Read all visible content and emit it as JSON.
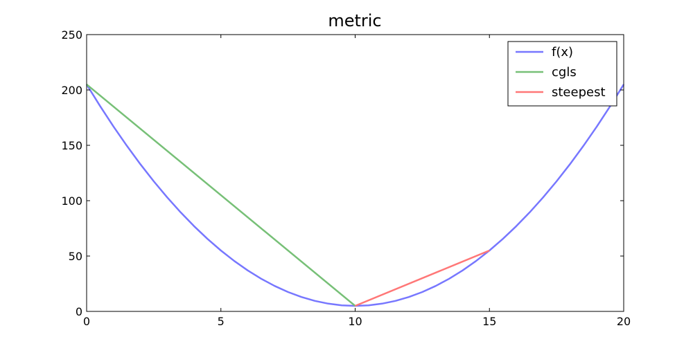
{
  "chart_data": {
    "type": "line",
    "title": "metric",
    "xlabel": "",
    "ylabel": "",
    "xlim": [
      0,
      20
    ],
    "ylim": [
      0,
      250
    ],
    "xticks": [
      0,
      5,
      10,
      15,
      20
    ],
    "yticks": [
      0,
      50,
      100,
      150,
      200,
      250
    ],
    "grid": false,
    "legend_position": "top-right",
    "series": [
      {
        "name": "f(x)",
        "color": "#7777ff",
        "function": "2*(x-10)^2+5",
        "x": [
          0,
          0.5,
          1,
          1.5,
          2,
          2.5,
          3,
          3.5,
          4,
          4.5,
          5,
          5.5,
          6,
          6.5,
          7,
          7.5,
          8,
          8.5,
          9,
          9.5,
          10,
          10.5,
          11,
          11.5,
          12,
          12.5,
          13,
          13.5,
          14,
          14.5,
          15,
          15.5,
          16,
          16.5,
          17,
          17.5,
          18,
          18.5,
          19,
          19.5,
          20
        ],
        "y": [
          205,
          185.5,
          167,
          149.5,
          133,
          117.5,
          103,
          89.5,
          77,
          65.5,
          55,
          45.5,
          37,
          29.5,
          23,
          17.5,
          13,
          9.5,
          7,
          5.5,
          5,
          5.5,
          7,
          9.5,
          13,
          17.5,
          23,
          29.5,
          37,
          45.5,
          55,
          65.5,
          77,
          89.5,
          103,
          117.5,
          133,
          149.5,
          167,
          185.5,
          205
        ]
      },
      {
        "name": "cgls",
        "color": "#77c077",
        "x": [
          0,
          10
        ],
        "y": [
          205,
          5
        ]
      },
      {
        "name": "steepest",
        "color": "#ff7777",
        "x": [
          10,
          15
        ],
        "y": [
          5,
          55
        ]
      }
    ]
  }
}
